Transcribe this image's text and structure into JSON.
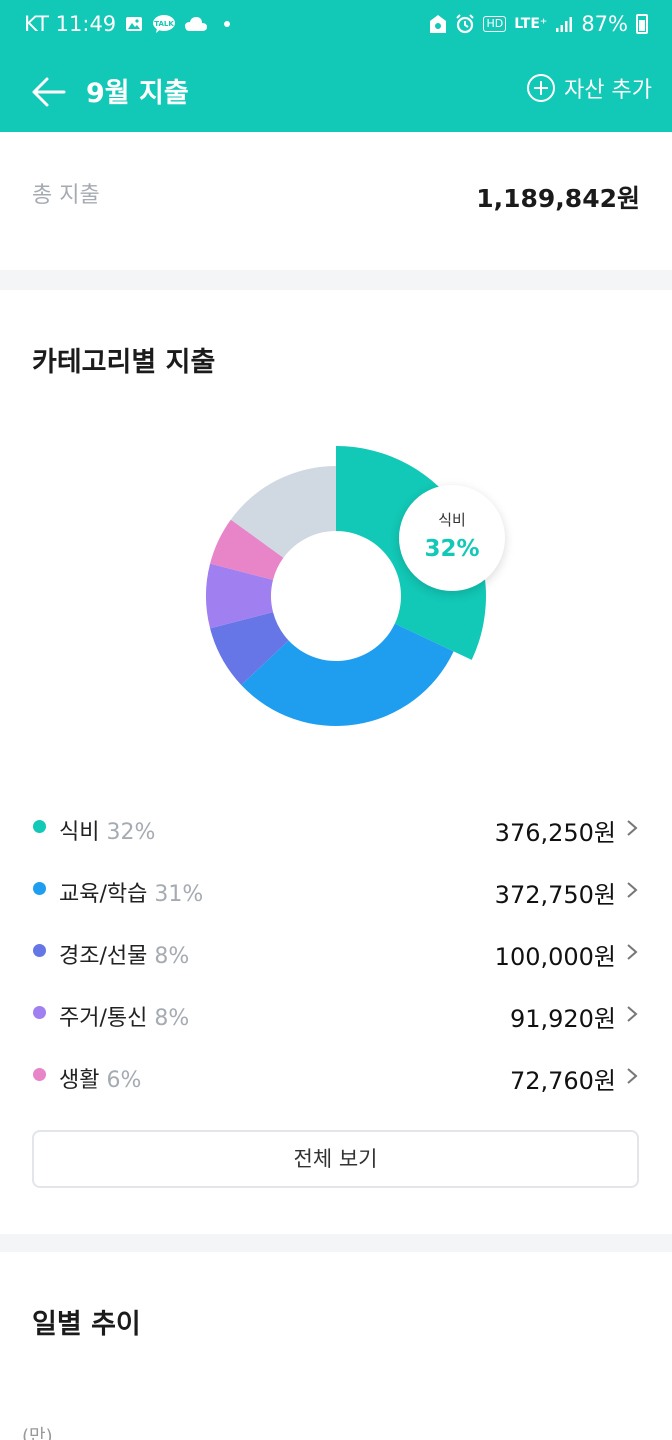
{
  "status_bar": {
    "carrier_time": "KT 11:49",
    "talk_badge": "TALK",
    "hd": "HD",
    "network": "LTE⁺",
    "battery": "87%"
  },
  "header": {
    "title": "9월 지출",
    "add_asset_label": "자산 추가"
  },
  "total": {
    "label": "총 지출",
    "value": "1,189,842원"
  },
  "category_section": {
    "title": "카테고리별 지출",
    "highlight": {
      "name": "식비",
      "pct": "32%"
    },
    "items": [
      {
        "name": "식비",
        "pct": "32%",
        "amount": "376,250원",
        "color": "#12c8b6"
      },
      {
        "name": "교육/학습",
        "pct": "31%",
        "amount": "372,750원",
        "color": "#1f9ef0"
      },
      {
        "name": "경조/선물",
        "pct": "8%",
        "amount": "100,000원",
        "color": "#6676e6"
      },
      {
        "name": "주거/통신",
        "pct": "8%",
        "amount": "91,920원",
        "color": "#a07ff0"
      },
      {
        "name": "생활",
        "pct": "6%",
        "amount": "72,760원",
        "color": "#e884c8"
      }
    ],
    "other_color": "#d0d8e2",
    "view_all_label": "전체 보기"
  },
  "chart_data": {
    "type": "pie",
    "categories": [
      "식비",
      "교육/학습",
      "경조/선물",
      "주거/통신",
      "생활",
      ""
    ],
    "values": [
      32,
      31,
      8,
      8,
      6,
      15
    ]
  },
  "daily_section": {
    "title": "일별 추이",
    "unit": "(만)"
  }
}
